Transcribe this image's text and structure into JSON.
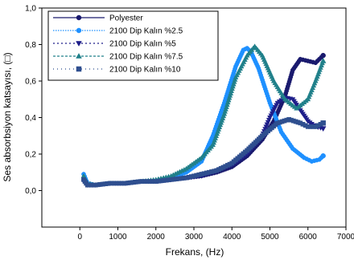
{
  "chart_data": {
    "type": "line",
    "xlabel": "Frekans, (Hz)",
    "ylabel": "Ses absorbsiyon katsayısı, (□)",
    "xlim": [
      -1000,
      7000
    ],
    "ylim": [
      -0.2,
      1.0
    ],
    "xticks": [
      0,
      1000,
      2000,
      3000,
      4000,
      5000,
      6000,
      7000
    ],
    "yticks": [
      0.0,
      0.2,
      0.4,
      0.6,
      0.8,
      1.0
    ],
    "xtick_labels": [
      "0",
      "1000",
      "2000",
      "3000",
      "4000",
      "5000",
      "6000",
      "7000"
    ],
    "ytick_labels": [
      "0,0",
      "0,2",
      "0,4",
      "0,6",
      "0,8",
      "1,0"
    ],
    "grid": false,
    "legend_position": "top-left",
    "series": [
      {
        "name": "Polyester",
        "color": "#1a1a6e",
        "marker": "circle",
        "x": [
          100,
          200,
          400,
          800,
          1200,
          1600,
          2000,
          2400,
          2800,
          3200,
          3600,
          4000,
          4400,
          4800,
          5100,
          5400,
          5600,
          5800,
          6000,
          6200,
          6400
        ],
        "y": [
          0.07,
          0.04,
          0.03,
          0.04,
          0.04,
          0.05,
          0.05,
          0.06,
          0.07,
          0.08,
          0.1,
          0.13,
          0.19,
          0.28,
          0.38,
          0.52,
          0.66,
          0.72,
          0.71,
          0.7,
          0.74
        ]
      },
      {
        "name": "2100 Dip Kalın %2.5",
        "color": "#1e90ff",
        "marker": "circle",
        "x": [
          100,
          200,
          400,
          800,
          1200,
          1600,
          2000,
          2400,
          2800,
          3200,
          3500,
          3800,
          4100,
          4300,
          4400,
          4500,
          4700,
          5000,
          5300,
          5600,
          5900,
          6100,
          6300,
          6400
        ],
        "y": [
          0.09,
          0.04,
          0.03,
          0.04,
          0.04,
          0.05,
          0.05,
          0.07,
          0.1,
          0.16,
          0.3,
          0.48,
          0.68,
          0.77,
          0.78,
          0.76,
          0.67,
          0.48,
          0.32,
          0.23,
          0.18,
          0.16,
          0.17,
          0.19
        ]
      },
      {
        "name": "2100 Dip Kalın %5",
        "color": "#1e1e8a",
        "marker": "triangle-down",
        "x": [
          100,
          200,
          400,
          800,
          1200,
          1600,
          2000,
          2400,
          2800,
          3200,
          3600,
          4000,
          4400,
          4800,
          5000,
          5200,
          5400,
          5600,
          5800,
          6000,
          6200,
          6400
        ],
        "y": [
          0.05,
          0.03,
          0.03,
          0.04,
          0.04,
          0.05,
          0.05,
          0.06,
          0.07,
          0.08,
          0.11,
          0.14,
          0.2,
          0.3,
          0.4,
          0.48,
          0.51,
          0.5,
          0.44,
          0.38,
          0.35,
          0.34
        ]
      },
      {
        "name": "2100 Dip Kalın %7.5",
        "color": "#20808a",
        "marker": "triangle-up",
        "x": [
          100,
          200,
          400,
          800,
          1200,
          1600,
          2000,
          2400,
          2800,
          3200,
          3500,
          3800,
          4100,
          4400,
          4600,
          4800,
          5100,
          5400,
          5700,
          6000,
          6200,
          6400
        ],
        "y": [
          0.08,
          0.04,
          0.03,
          0.04,
          0.04,
          0.05,
          0.06,
          0.08,
          0.12,
          0.18,
          0.25,
          0.42,
          0.62,
          0.74,
          0.79,
          0.74,
          0.6,
          0.5,
          0.45,
          0.5,
          0.6,
          0.71
        ]
      },
      {
        "name": "2100 Dip Kalın %10",
        "color": "#2f4f8f",
        "marker": "square",
        "x": [
          100,
          200,
          400,
          800,
          1200,
          1600,
          2000,
          2400,
          2800,
          3200,
          3600,
          4000,
          4400,
          4800,
          5200,
          5500,
          5800,
          6000,
          6200,
          6400
        ],
        "y": [
          0.06,
          0.03,
          0.03,
          0.04,
          0.04,
          0.05,
          0.05,
          0.06,
          0.07,
          0.09,
          0.11,
          0.15,
          0.22,
          0.3,
          0.37,
          0.39,
          0.37,
          0.35,
          0.35,
          0.37
        ]
      }
    ]
  }
}
